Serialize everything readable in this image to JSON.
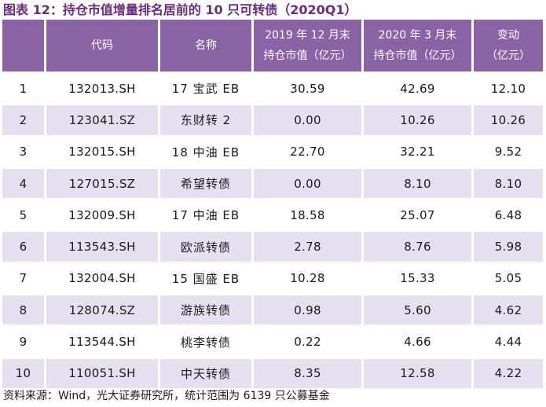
{
  "title": "图表 12：持仓市值增量排名居前的 10 只可转债（2020Q1）",
  "table": {
    "headers": [
      {
        "line1": "",
        "line2": ""
      },
      {
        "line1": "代码",
        "line2": ""
      },
      {
        "line1": "名称",
        "line2": ""
      },
      {
        "line1": "2019 年 12 月末",
        "line2": "持仓市值（亿元）"
      },
      {
        "line1": "2020 年 3 月末",
        "line2": "持仓市值（亿元）"
      },
      {
        "line1": "变动",
        "line2": "（亿元）"
      }
    ],
    "rows": [
      {
        "rank": "1",
        "code": "132013.SH",
        "name": "17 宝武 EB",
        "dec2019": "30.59",
        "mar2020": "42.69",
        "change": "12.10"
      },
      {
        "rank": "2",
        "code": "123041.SZ",
        "name": "东财转 2",
        "dec2019": "0.00",
        "mar2020": "10.26",
        "change": "10.26"
      },
      {
        "rank": "3",
        "code": "132015.SH",
        "name": "18 中油 EB",
        "dec2019": "22.70",
        "mar2020": "32.21",
        "change": "9.52"
      },
      {
        "rank": "4",
        "code": "127015.SZ",
        "name": "希望转债",
        "dec2019": "0.00",
        "mar2020": "8.10",
        "change": "8.10"
      },
      {
        "rank": "5",
        "code": "132009.SH",
        "name": "17 中油 EB",
        "dec2019": "18.58",
        "mar2020": "25.07",
        "change": "6.48"
      },
      {
        "rank": "6",
        "code": "113543.SH",
        "name": "欧派转债",
        "dec2019": "2.78",
        "mar2020": "8.76",
        "change": "5.98"
      },
      {
        "rank": "7",
        "code": "132004.SH",
        "name": "15 国盛 EB",
        "dec2019": "10.28",
        "mar2020": "15.33",
        "change": "5.05"
      },
      {
        "rank": "8",
        "code": "128074.SZ",
        "name": "游族转债",
        "dec2019": "0.98",
        "mar2020": "5.60",
        "change": "4.62"
      },
      {
        "rank": "9",
        "code": "113544.SH",
        "name": "桃李转债",
        "dec2019": "0.22",
        "mar2020": "4.66",
        "change": "4.44"
      },
      {
        "rank": "10",
        "code": "110051.SH",
        "name": "中天转债",
        "dec2019": "8.35",
        "mar2020": "12.58",
        "change": "4.22"
      }
    ]
  },
  "source": "资料来源：Wind，光大证券研究所，统计范围为 6139 只公募基金",
  "colors": {
    "header_bg": "#8a63a5",
    "stripe_bg": "#e6dff0",
    "title": "#6a2b7a"
  }
}
